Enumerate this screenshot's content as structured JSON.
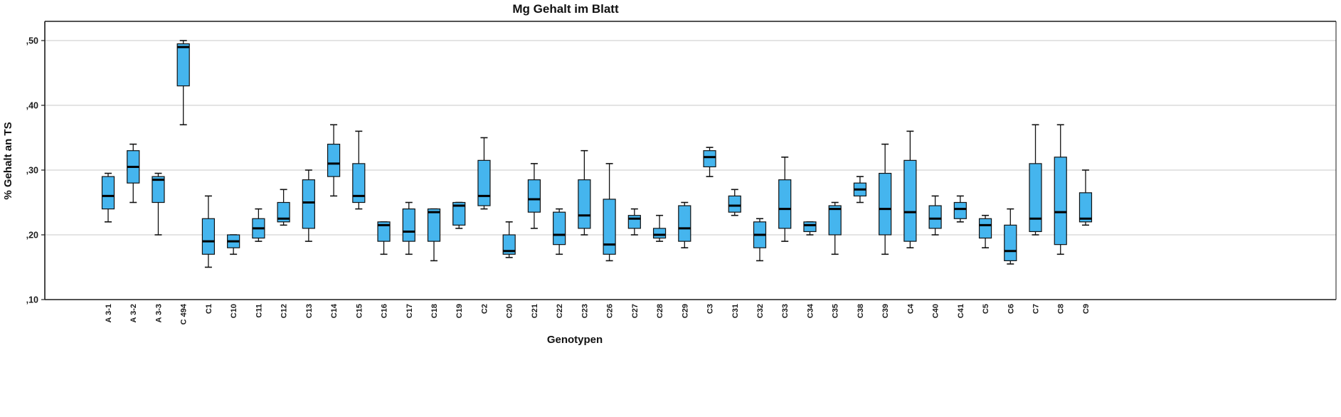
{
  "chart_data": {
    "type": "boxplot",
    "title": "Mg Gehalt im Blatt",
    "xlabel": "Genotypen",
    "ylabel": "% Gehalt an TS",
    "ylim": [
      0.1,
      0.53
    ],
    "yticks": [
      0.1,
      0.2,
      0.3,
      0.4,
      0.5
    ],
    "ytick_labels": [
      ",10",
      ",20",
      ",30",
      ",40",
      ",50"
    ],
    "grid": true,
    "legend": false,
    "colors": {
      "box_fill": "#45b5ee",
      "box_stroke": "#111111",
      "median": "#000000",
      "gridline": "#c9c9c9",
      "axis": "#1a1a1a"
    },
    "boxes": [
      {
        "label": "A 3-1",
        "whisker_low": 0.22,
        "q1": 0.24,
        "median": 0.26,
        "q3": 0.29,
        "whisker_high": 0.295
      },
      {
        "label": "A 3-2",
        "whisker_low": 0.25,
        "q1": 0.28,
        "median": 0.305,
        "q3": 0.33,
        "whisker_high": 0.34
      },
      {
        "label": "A 3-3",
        "whisker_low": 0.2,
        "q1": 0.25,
        "median": 0.285,
        "q3": 0.29,
        "whisker_high": 0.295
      },
      {
        "label": "C 494",
        "whisker_low": 0.37,
        "q1": 0.43,
        "median": 0.49,
        "q3": 0.495,
        "whisker_high": 0.5
      },
      {
        "label": "C1",
        "whisker_low": 0.15,
        "q1": 0.17,
        "median": 0.19,
        "q3": 0.225,
        "whisker_high": 0.26
      },
      {
        "label": "C10",
        "whisker_low": 0.17,
        "q1": 0.18,
        "median": 0.19,
        "q3": 0.2,
        "whisker_high": 0.2
      },
      {
        "label": "C11",
        "whisker_low": 0.19,
        "q1": 0.195,
        "median": 0.21,
        "q3": 0.225,
        "whisker_high": 0.24
      },
      {
        "label": "C12",
        "whisker_low": 0.215,
        "q1": 0.22,
        "median": 0.225,
        "q3": 0.25,
        "whisker_high": 0.27
      },
      {
        "label": "C13",
        "whisker_low": 0.19,
        "q1": 0.21,
        "median": 0.25,
        "q3": 0.285,
        "whisker_high": 0.3
      },
      {
        "label": "C14",
        "whisker_low": 0.26,
        "q1": 0.29,
        "median": 0.31,
        "q3": 0.34,
        "whisker_high": 0.37
      },
      {
        "label": "C15",
        "whisker_low": 0.24,
        "q1": 0.25,
        "median": 0.26,
        "q3": 0.31,
        "whisker_high": 0.36
      },
      {
        "label": "C16",
        "whisker_low": 0.17,
        "q1": 0.19,
        "median": 0.215,
        "q3": 0.22,
        "whisker_high": 0.22
      },
      {
        "label": "C17",
        "whisker_low": 0.17,
        "q1": 0.19,
        "median": 0.205,
        "q3": 0.24,
        "whisker_high": 0.25
      },
      {
        "label": "C18",
        "whisker_low": 0.16,
        "q1": 0.19,
        "median": 0.235,
        "q3": 0.24,
        "whisker_high": 0.24
      },
      {
        "label": "C19",
        "whisker_low": 0.21,
        "q1": 0.215,
        "median": 0.245,
        "q3": 0.25,
        "whisker_high": 0.25
      },
      {
        "label": "C2",
        "whisker_low": 0.24,
        "q1": 0.245,
        "median": 0.26,
        "q3": 0.315,
        "whisker_high": 0.35
      },
      {
        "label": "C20",
        "whisker_low": 0.165,
        "q1": 0.17,
        "median": 0.175,
        "q3": 0.2,
        "whisker_high": 0.22
      },
      {
        "label": "C21",
        "whisker_low": 0.21,
        "q1": 0.235,
        "median": 0.255,
        "q3": 0.285,
        "whisker_high": 0.31
      },
      {
        "label": "C22",
        "whisker_low": 0.17,
        "q1": 0.185,
        "median": 0.2,
        "q3": 0.235,
        "whisker_high": 0.24
      },
      {
        "label": "C23",
        "whisker_low": 0.2,
        "q1": 0.21,
        "median": 0.23,
        "q3": 0.285,
        "whisker_high": 0.33
      },
      {
        "label": "C26",
        "whisker_low": 0.16,
        "q1": 0.17,
        "median": 0.185,
        "q3": 0.255,
        "whisker_high": 0.31
      },
      {
        "label": "C27",
        "whisker_low": 0.2,
        "q1": 0.21,
        "median": 0.225,
        "q3": 0.23,
        "whisker_high": 0.24
      },
      {
        "label": "C28",
        "whisker_low": 0.19,
        "q1": 0.195,
        "median": 0.2,
        "q3": 0.21,
        "whisker_high": 0.23
      },
      {
        "label": "C29",
        "whisker_low": 0.18,
        "q1": 0.19,
        "median": 0.21,
        "q3": 0.245,
        "whisker_high": 0.25
      },
      {
        "label": "C3",
        "whisker_low": 0.29,
        "q1": 0.305,
        "median": 0.32,
        "q3": 0.33,
        "whisker_high": 0.335
      },
      {
        "label": "C31",
        "whisker_low": 0.23,
        "q1": 0.235,
        "median": 0.245,
        "q3": 0.26,
        "whisker_high": 0.27
      },
      {
        "label": "C32",
        "whisker_low": 0.16,
        "q1": 0.18,
        "median": 0.2,
        "q3": 0.22,
        "whisker_high": 0.225
      },
      {
        "label": "C33",
        "whisker_low": 0.19,
        "q1": 0.21,
        "median": 0.24,
        "q3": 0.285,
        "whisker_high": 0.32
      },
      {
        "label": "C34",
        "whisker_low": 0.2,
        "q1": 0.205,
        "median": 0.215,
        "q3": 0.22,
        "whisker_high": 0.22
      },
      {
        "label": "C35",
        "whisker_low": 0.17,
        "q1": 0.2,
        "median": 0.24,
        "q3": 0.245,
        "whisker_high": 0.25
      },
      {
        "label": "C38",
        "whisker_low": 0.25,
        "q1": 0.26,
        "median": 0.27,
        "q3": 0.28,
        "whisker_high": 0.29
      },
      {
        "label": "C39",
        "whisker_low": 0.17,
        "q1": 0.2,
        "median": 0.24,
        "q3": 0.295,
        "whisker_high": 0.34
      },
      {
        "label": "C4",
        "whisker_low": 0.18,
        "q1": 0.19,
        "median": 0.235,
        "q3": 0.315,
        "whisker_high": 0.36
      },
      {
        "label": "C40",
        "whisker_low": 0.2,
        "q1": 0.21,
        "median": 0.225,
        "q3": 0.245,
        "whisker_high": 0.26
      },
      {
        "label": "C41",
        "whisker_low": 0.22,
        "q1": 0.225,
        "median": 0.24,
        "q3": 0.25,
        "whisker_high": 0.26
      },
      {
        "label": "C5",
        "whisker_low": 0.18,
        "q1": 0.195,
        "median": 0.215,
        "q3": 0.225,
        "whisker_high": 0.23
      },
      {
        "label": "C6",
        "whisker_low": 0.155,
        "q1": 0.16,
        "median": 0.175,
        "q3": 0.215,
        "whisker_high": 0.24
      },
      {
        "label": "C7",
        "whisker_low": 0.2,
        "q1": 0.205,
        "median": 0.225,
        "q3": 0.31,
        "whisker_high": 0.37
      },
      {
        "label": "C8",
        "whisker_low": 0.17,
        "q1": 0.185,
        "median": 0.235,
        "q3": 0.32,
        "whisker_high": 0.37
      },
      {
        "label": "C9",
        "whisker_low": 0.215,
        "q1": 0.22,
        "median": 0.225,
        "q3": 0.265,
        "whisker_high": 0.3
      }
    ]
  }
}
